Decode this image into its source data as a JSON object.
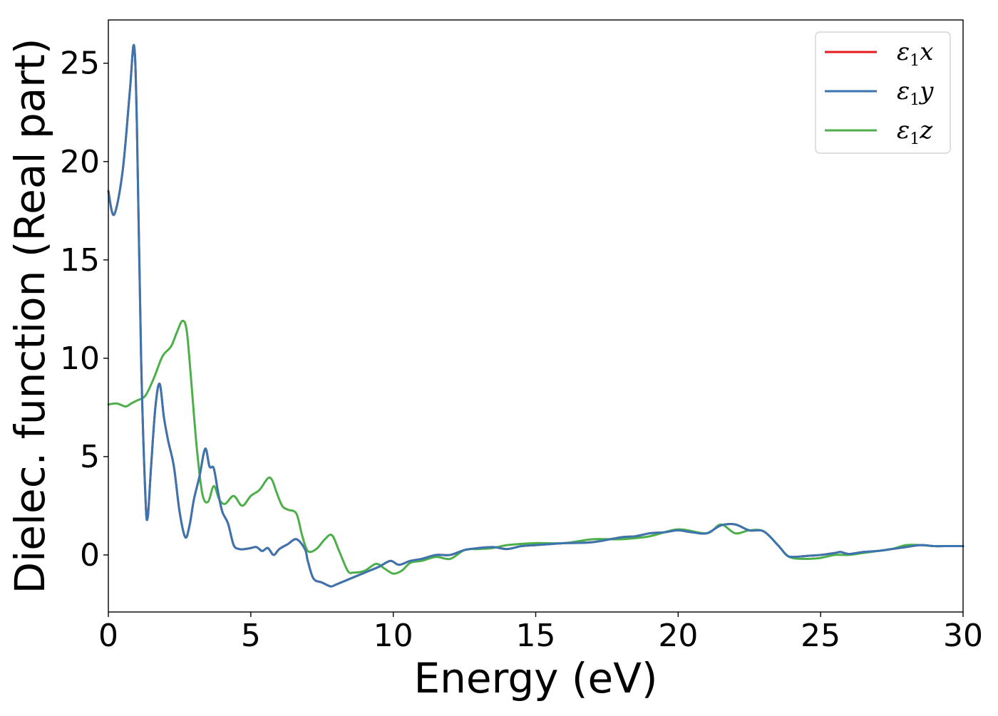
{
  "chart_data": {
    "type": "line",
    "xlabel": "Energy (eV)",
    "ylabel": "Dielec. function (Real part)",
    "xlim": [
      0,
      30
    ],
    "ylim": [
      -2.9,
      27.2
    ],
    "xticks": [
      0,
      5,
      10,
      15,
      20,
      25,
      30
    ],
    "yticks": [
      0,
      5,
      10,
      15,
      20,
      25
    ],
    "grid": false,
    "legend_position": "top-right",
    "series": [
      {
        "name": "ε1x",
        "name_main": "ε",
        "name_sub": "1",
        "name_axis": "x",
        "color": "#e41a1c",
        "x": [
          0,
          0.2,
          0.5,
          0.75,
          0.9,
          1.0,
          1.15,
          1.3,
          1.38,
          1.5,
          1.65,
          1.8,
          1.95,
          2.1,
          2.3,
          2.5,
          2.7,
          2.85,
          3.0,
          3.2,
          3.4,
          3.55,
          3.7,
          3.85,
          4.0,
          4.2,
          4.4,
          4.6,
          4.8,
          5.0,
          5.2,
          5.4,
          5.6,
          5.8,
          6.0,
          6.3,
          6.6,
          6.9,
          7.0,
          7.2,
          7.5,
          7.8,
          8.0,
          8.5,
          9.0,
          9.5,
          9.9,
          10.2,
          10.6,
          11.0,
          11.5,
          12.0,
          12.5,
          13.0,
          13.5,
          14.0,
          14.5,
          15.0,
          15.5,
          16.0,
          17.0,
          18.0,
          18.5,
          19.0,
          19.5,
          20.0,
          20.5,
          21.0,
          21.5,
          22.0,
          22.5,
          23.0,
          23.5,
          23.8,
          24.0,
          24.5,
          25.0,
          25.5,
          25.7,
          26.0,
          26.5,
          27.0,
          27.5,
          28.0,
          28.5,
          29.0,
          29.5,
          30.0
        ],
        "values": [
          18.5,
          17.3,
          19.5,
          23.5,
          25.9,
          22.0,
          10.0,
          3.0,
          1.9,
          4.5,
          7.5,
          8.7,
          7.0,
          5.8,
          4.5,
          2.2,
          0.9,
          1.5,
          2.8,
          4.0,
          5.4,
          4.5,
          4.4,
          3.2,
          2.2,
          1.6,
          0.5,
          0.3,
          0.3,
          0.35,
          0.4,
          0.2,
          0.35,
          0.0,
          0.3,
          0.55,
          0.8,
          0.3,
          -0.3,
          -1.2,
          -1.4,
          -1.6,
          -1.5,
          -1.2,
          -0.9,
          -0.6,
          -0.3,
          -0.5,
          -0.3,
          -0.2,
          0.0,
          0.0,
          0.25,
          0.35,
          0.4,
          0.3,
          0.45,
          0.5,
          0.55,
          0.6,
          0.65,
          0.9,
          0.95,
          1.1,
          1.15,
          1.25,
          1.15,
          1.1,
          1.5,
          1.55,
          1.25,
          1.2,
          0.5,
          0.0,
          -0.1,
          -0.05,
          0.0,
          0.1,
          0.15,
          0.05,
          0.15,
          0.2,
          0.3,
          0.4,
          0.5,
          0.45,
          0.45,
          0.45
        ]
      },
      {
        "name": "ε1y",
        "name_main": "ε",
        "name_sub": "1",
        "name_axis": "y",
        "color": "#3a75b0",
        "x": [
          0,
          0.2,
          0.5,
          0.75,
          0.9,
          1.0,
          1.15,
          1.3,
          1.38,
          1.5,
          1.65,
          1.8,
          1.95,
          2.1,
          2.3,
          2.5,
          2.7,
          2.85,
          3.0,
          3.2,
          3.4,
          3.55,
          3.7,
          3.85,
          4.0,
          4.2,
          4.4,
          4.6,
          4.8,
          5.0,
          5.2,
          5.4,
          5.6,
          5.8,
          6.0,
          6.3,
          6.6,
          6.9,
          7.0,
          7.2,
          7.5,
          7.8,
          8.0,
          8.5,
          9.0,
          9.5,
          9.9,
          10.2,
          10.6,
          11.0,
          11.5,
          12.0,
          12.5,
          13.0,
          13.5,
          14.0,
          14.5,
          15.0,
          15.5,
          16.0,
          17.0,
          18.0,
          18.5,
          19.0,
          19.5,
          20.0,
          20.5,
          21.0,
          21.5,
          22.0,
          22.5,
          23.0,
          23.5,
          23.8,
          24.0,
          24.5,
          25.0,
          25.5,
          25.7,
          26.0,
          26.5,
          27.0,
          27.5,
          28.0,
          28.5,
          29.0,
          29.5,
          30.0
        ],
        "values": [
          18.5,
          17.3,
          19.5,
          23.5,
          25.9,
          22.0,
          10.0,
          3.0,
          1.9,
          4.5,
          7.5,
          8.7,
          7.0,
          5.8,
          4.5,
          2.2,
          0.9,
          1.5,
          2.8,
          4.0,
          5.4,
          4.5,
          4.4,
          3.2,
          2.2,
          1.6,
          0.5,
          0.3,
          0.3,
          0.35,
          0.4,
          0.2,
          0.35,
          0.0,
          0.3,
          0.55,
          0.8,
          0.3,
          -0.3,
          -1.2,
          -1.4,
          -1.6,
          -1.5,
          -1.2,
          -0.9,
          -0.6,
          -0.3,
          -0.5,
          -0.3,
          -0.2,
          0.0,
          0.0,
          0.25,
          0.35,
          0.4,
          0.3,
          0.45,
          0.5,
          0.55,
          0.6,
          0.65,
          0.9,
          0.95,
          1.1,
          1.15,
          1.25,
          1.15,
          1.1,
          1.5,
          1.55,
          1.25,
          1.2,
          0.5,
          0.0,
          -0.1,
          -0.05,
          0.0,
          0.1,
          0.15,
          0.05,
          0.15,
          0.2,
          0.3,
          0.4,
          0.5,
          0.45,
          0.45,
          0.45
        ]
      },
      {
        "name": "ε1z",
        "name_main": "ε",
        "name_sub": "1",
        "name_axis": "z",
        "color": "#4daf4a",
        "x": [
          0,
          0.3,
          0.6,
          0.8,
          1.0,
          1.3,
          1.6,
          1.9,
          2.2,
          2.4,
          2.6,
          2.75,
          2.9,
          3.1,
          3.3,
          3.5,
          3.7,
          3.9,
          4.1,
          4.4,
          4.7,
          5.0,
          5.3,
          5.6,
          5.75,
          5.9,
          6.1,
          6.3,
          6.6,
          6.8,
          7.0,
          7.3,
          7.6,
          7.85,
          8.1,
          8.4,
          8.6,
          9.0,
          9.4,
          9.7,
          10.0,
          10.3,
          10.6,
          11.0,
          11.5,
          12.0,
          12.5,
          13.0,
          13.5,
          14.0,
          15.0,
          16.0,
          17.0,
          18.0,
          19.0,
          20.0,
          21.0,
          21.5,
          22.0,
          22.5,
          23.0,
          23.5,
          23.9,
          24.5,
          25.0,
          25.5,
          26.0,
          26.5,
          27.0,
          27.5,
          28.0,
          28.5,
          29.0,
          29.5,
          30.0
        ],
        "values": [
          7.65,
          7.7,
          7.55,
          7.7,
          7.85,
          8.1,
          9.0,
          10.1,
          10.6,
          11.3,
          11.9,
          11.4,
          9.0,
          5.5,
          3.1,
          2.7,
          3.5,
          2.8,
          2.6,
          3.0,
          2.5,
          3.0,
          3.3,
          3.9,
          3.8,
          3.2,
          2.5,
          2.3,
          2.1,
          1.0,
          0.2,
          0.3,
          0.8,
          1.0,
          0.2,
          -0.8,
          -0.9,
          -0.8,
          -0.45,
          -0.7,
          -0.95,
          -0.8,
          -0.4,
          -0.3,
          -0.1,
          -0.2,
          0.25,
          0.3,
          0.35,
          0.5,
          0.6,
          0.6,
          0.8,
          0.8,
          0.95,
          1.3,
          1.1,
          1.55,
          1.1,
          1.25,
          1.2,
          0.5,
          -0.1,
          -0.2,
          -0.15,
          0.0,
          0.0,
          0.1,
          0.2,
          0.3,
          0.5,
          0.5,
          0.45,
          0.45,
          0.45
        ]
      }
    ]
  }
}
